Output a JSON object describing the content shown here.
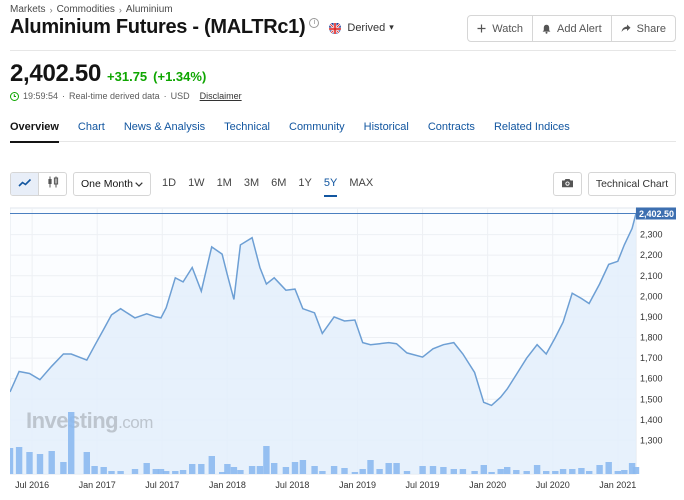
{
  "breadcrumb": [
    "Markets",
    "Commodities",
    "Aluminium"
  ],
  "header": {
    "title": "Aluminium Futures - (MALTRc1)",
    "info": "i",
    "source_label": "Derived",
    "actions": {
      "watch": "Watch",
      "add_alert": "Add Alert",
      "share": "Share"
    }
  },
  "quote": {
    "price": "2,402.50",
    "change": "+31.75",
    "change_pct": "(+1.34%)",
    "time": "19:59:54",
    "status": "Real-time derived data",
    "currency": "USD",
    "disclaimer": "Disclaimer",
    "dot": "·"
  },
  "tabs": [
    "Overview",
    "Chart",
    "News & Analysis",
    "Technical",
    "Community",
    "Historical",
    "Contracts",
    "Related Indices"
  ],
  "chart_toolbar": {
    "range_select": "One Month",
    "periods": [
      "1D",
      "1W",
      "1M",
      "3M",
      "6M",
      "1Y",
      "5Y",
      "MAX"
    ],
    "active_period": "5Y",
    "technical_chart": "Technical Chart"
  },
  "colors": {
    "accent": "#1256a0",
    "positive": "#0ea600",
    "series_line": "#6d9fd4",
    "area_fill": "#e3eefb",
    "volume": "#8cb9ef"
  },
  "chart_data": {
    "type": "area",
    "title": "",
    "xlabel": "",
    "ylabel": "",
    "ylim": [
      1200,
      2400
    ],
    "y_ticks": [
      "2,300",
      "2,200",
      "2,100",
      "2,000",
      "1,900",
      "1,800",
      "1,700",
      "1,600",
      "1,500",
      "1,400",
      "1,300"
    ],
    "y_tick_values": [
      2300,
      2200,
      2100,
      2000,
      1900,
      1800,
      1700,
      1600,
      1500,
      1400,
      1300
    ],
    "x_ticks": [
      "Jul 2016",
      "Jan 2017",
      "Jul 2017",
      "Jan 2018",
      "Jul 2018",
      "Jan 2019",
      "Jul 2019",
      "Jan 2020",
      "Jul 2020",
      "Jan 2021"
    ],
    "x_tick_values": [
      2016.5,
      2017.0,
      2017.5,
      2018.0,
      2018.5,
      2019.0,
      2019.5,
      2020.0,
      2020.5,
      2021.0
    ],
    "last_price_label": "2,402.50",
    "last_price": 2402.5,
    "watermark": "Investing",
    "watermark_suffix": ".com",
    "series": [
      {
        "x": [
          2016.33,
          2016.4,
          2016.48,
          2016.56,
          2016.65,
          2016.74,
          2016.8,
          2016.92,
          2016.98,
          2017.05,
          2017.11,
          2017.18,
          2017.29,
          2017.38,
          2017.45,
          2017.49,
          2017.53,
          2017.6,
          2017.66,
          2017.73,
          2017.8,
          2017.88,
          2017.96,
          2018.0,
          2018.05,
          2018.1,
          2018.19,
          2018.25,
          2018.3,
          2018.36,
          2018.45,
          2018.52,
          2018.58,
          2018.67,
          2018.73,
          2018.82,
          2018.9,
          2018.98,
          2019.04,
          2019.1,
          2019.17,
          2019.24,
          2019.3,
          2019.38,
          2019.5,
          2019.58,
          2019.66,
          2019.74,
          2019.81,
          2019.9,
          2019.97,
          2020.03,
          2020.1,
          2020.15,
          2020.22,
          2020.3,
          2020.38,
          2020.45,
          2020.52,
          2020.58,
          2020.65,
          2020.72,
          2020.78,
          2020.86,
          2020.93,
          2021.0,
          2021.05,
          2021.11,
          2021.14
        ],
        "values": [
          1535,
          1635,
          1625,
          1595,
          1660,
          1720,
          1720,
          1690,
          1760,
          1840,
          1910,
          1940,
          1895,
          1915,
          1900,
          1895,
          1945,
          2090,
          2070,
          2140,
          2025,
          2240,
          2205,
          2105,
          1985,
          2250,
          2285,
          2140,
          2060,
          2090,
          2030,
          2035,
          1940,
          1920,
          1820,
          1900,
          1880,
          1885,
          1775,
          1765,
          1770,
          1775,
          1770,
          1725,
          1705,
          1745,
          1765,
          1775,
          1720,
          1630,
          1485,
          1470,
          1510,
          1550,
          1620,
          1700,
          1765,
          1720,
          1800,
          1875,
          2015,
          1990,
          1965,
          2060,
          2155,
          2170,
          2250,
          2330,
          2402.5
        ],
        "volume": [
          0.26,
          0.27,
          0.22,
          0.2,
          0.23,
          0.12,
          0.62,
          0.22,
          0.08,
          0.07,
          0.03,
          0.03,
          0.05,
          0.11,
          0.05,
          0.05,
          0.03,
          0.03,
          0.04,
          0.1,
          0.1,
          0.18,
          0.02,
          0.1,
          0.07,
          0.04,
          0.08,
          0.08,
          0.28,
          0.11,
          0.07,
          0.12,
          0.14,
          0.08,
          0.03,
          0.08,
          0.06,
          0.02,
          0.05,
          0.14,
          0.05,
          0.11,
          0.11,
          0.03,
          0.08,
          0.08,
          0.07,
          0.05,
          0.05,
          0.03,
          0.09,
          0.02,
          0.05,
          0.07,
          0.04,
          0.03,
          0.09,
          0.03,
          0.03,
          0.05,
          0.05,
          0.06,
          0.03,
          0.09,
          0.12,
          0.03,
          0.04,
          0.11,
          0.07
        ]
      }
    ]
  }
}
